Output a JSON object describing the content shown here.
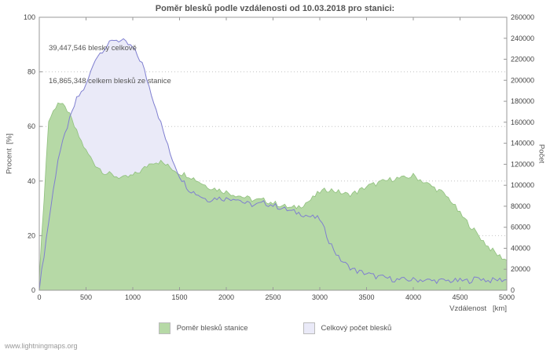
{
  "title": "Poměr blesků podle vzdálenosti od 10.03.2018 pro stanici:",
  "annotations": {
    "line1": "39,447,546 blesky celkově",
    "line2": "16,865,348 celkem blesků ze stanice"
  },
  "axes": {
    "left_label": "Procent  [%]",
    "right_label": "Počet",
    "x_label": "Vzdálenost   [km]"
  },
  "legend": [
    {
      "label": "Poměr blesků stanice",
      "color": "#b6d9a6"
    },
    {
      "label": "Celkový počet blesků",
      "color": "#eaeaf8"
    }
  ],
  "watermark": "www.lightningmaps.org",
  "colors": {
    "green_fill": "#b6d9a6",
    "green_edge": "#90c07e",
    "lavender_fill": "#eaeaf8",
    "blue_line": "#7f7fd0",
    "grid": "#c4c4c4",
    "axis": "#999999"
  },
  "chart_data": {
    "type": "area",
    "title": "Poměr blesků podle vzdálenosti od 10.03.2018 pro stanici:",
    "xlabel": "Vzdálenost [km]",
    "ylabel_left": "Procent [%]",
    "ylabel_right": "Počet",
    "x_range": [
      0,
      5000
    ],
    "x_ticks": [
      0,
      500,
      1000,
      1500,
      2000,
      2500,
      3000,
      3500,
      4000,
      4500,
      5000
    ],
    "left_range": [
      0,
      100
    ],
    "left_ticks": [
      0,
      20,
      40,
      60,
      80,
      100
    ],
    "right_range": [
      0,
      260000
    ],
    "right_ticks": [
      0,
      20000,
      40000,
      60000,
      80000,
      100000,
      120000,
      140000,
      160000,
      180000,
      200000,
      220000,
      240000,
      260000
    ],
    "grid": "horizontal-dotted",
    "legend_position": "bottom",
    "x": [
      0,
      100,
      200,
      300,
      400,
      500,
      600,
      700,
      800,
      900,
      1000,
      1100,
      1200,
      1300,
      1400,
      1500,
      1600,
      1700,
      1800,
      1900,
      2000,
      2100,
      2200,
      2300,
      2400,
      2500,
      2600,
      2700,
      2800,
      2900,
      3000,
      3100,
      3200,
      3300,
      3400,
      3500,
      3600,
      3700,
      3800,
      3900,
      4000,
      4100,
      4200,
      4300,
      4400,
      4500,
      4600,
      4700,
      4800,
      4900,
      5000
    ],
    "series": [
      {
        "name": "Poměr blesků stanice",
        "axis": "left",
        "style": "filled-area",
        "values": [
          5,
          62,
          69,
          66,
          58,
          51,
          46,
          43,
          42,
          41,
          42,
          44,
          47,
          47,
          45,
          43,
          42,
          40,
          38,
          37,
          36,
          35,
          34,
          33,
          33,
          32,
          31,
          30,
          31,
          33,
          36,
          37,
          36,
          35,
          36,
          38,
          39,
          40,
          41,
          41,
          42,
          40,
          38,
          36,
          33,
          28,
          24,
          20,
          16,
          13,
          11
        ]
      },
      {
        "name": "Celkový počet blesků",
        "axis": "right",
        "style": "filled-area-with-line",
        "values": [
          2000,
          65000,
          125000,
          156000,
          182000,
          195000,
          221000,
          231000,
          239000,
          237000,
          231000,
          216000,
          187000,
          159000,
          130000,
          109000,
          96000,
          91000,
          86000,
          88000,
          87000,
          88000,
          83000,
          81000,
          83000,
          81000,
          78000,
          75000,
          73000,
          70000,
          68000,
          47000,
          31000,
          23000,
          18000,
          16000,
          13000,
          12000,
          10000,
          10000,
          10000,
          10000,
          9000,
          9000,
          9000,
          9000,
          9000,
          12000,
          9000,
          10000,
          10000
        ]
      }
    ]
  }
}
